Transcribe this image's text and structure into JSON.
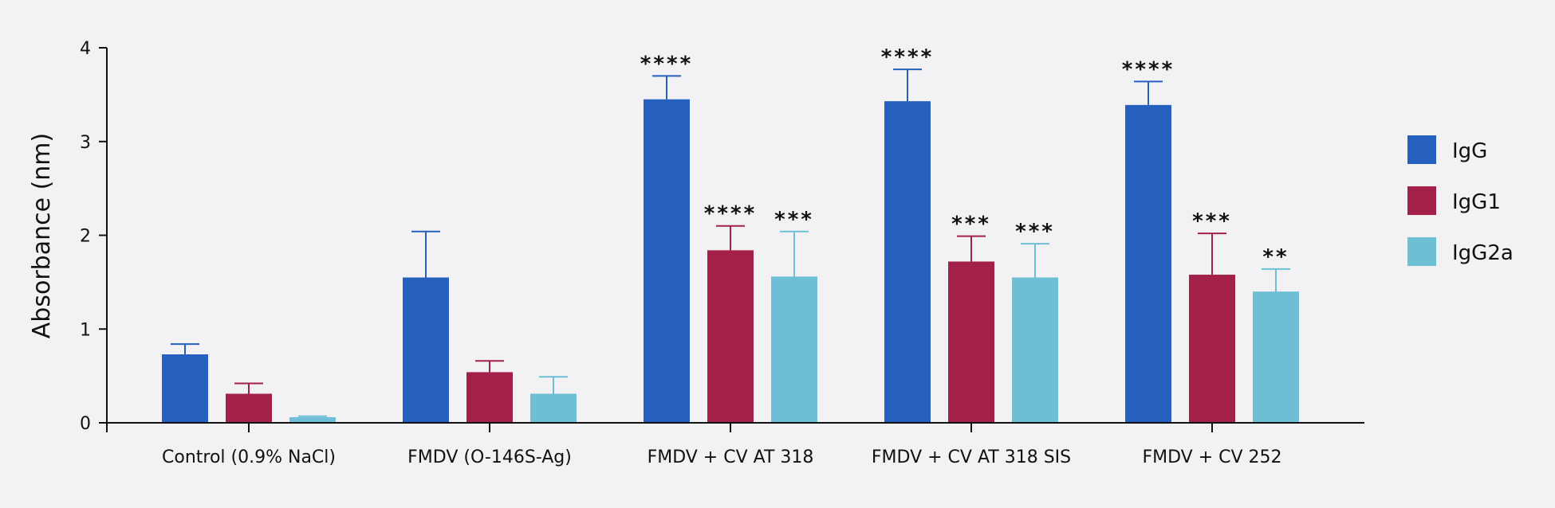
{
  "chart_data": {
    "type": "bar",
    "title": "",
    "xlabel": "",
    "ylabel": "Absorbance (nm)",
    "ylim": [
      0,
      4
    ],
    "yticks": [
      0,
      1,
      2,
      3,
      4
    ],
    "grid": false,
    "legend_position": "right",
    "categories": [
      "Control (0.9% NaCl)",
      "FMDV (O-146S-Ag)",
      "FMDV + CV AT 318",
      "FMDV + CV AT 318 SIS",
      "FMDV + CV 252"
    ],
    "series": [
      {
        "name": "IgG",
        "color": "#2560bf",
        "values": [
          0.73,
          1.55,
          3.45,
          3.43,
          3.39
        ],
        "error_upper": [
          0.84,
          2.04,
          3.7,
          3.77,
          3.64
        ],
        "significance": [
          "",
          "",
          "****",
          "****",
          "****"
        ]
      },
      {
        "name": "IgG1",
        "color": "#a32049",
        "values": [
          0.31,
          0.54,
          1.84,
          1.72,
          1.58
        ],
        "error_upper": [
          0.42,
          0.66,
          2.1,
          1.99,
          2.02
        ],
        "significance": [
          "",
          "",
          "****",
          "***",
          "***"
        ]
      },
      {
        "name": "IgG2a",
        "color": "#6ebfd6",
        "values": [
          0.06,
          0.31,
          1.56,
          1.55,
          1.4
        ],
        "error_upper": [
          0.07,
          0.49,
          2.04,
          1.91,
          1.64
        ],
        "significance": [
          "",
          "",
          "***",
          "***",
          "**"
        ]
      }
    ]
  }
}
